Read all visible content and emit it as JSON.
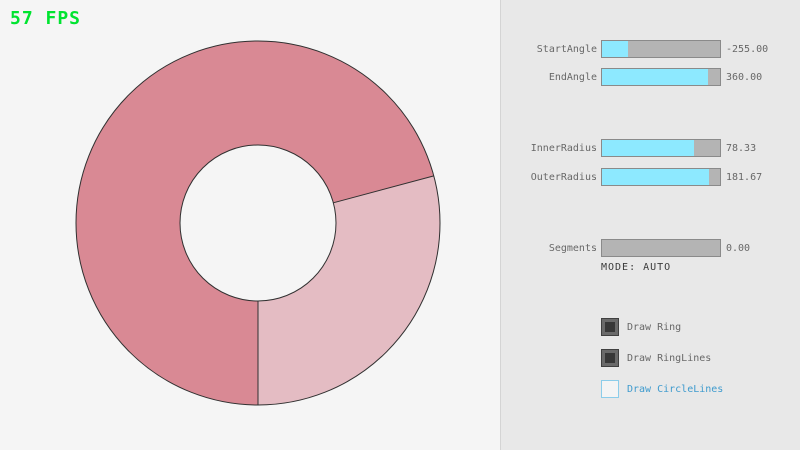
{
  "fps": "57 FPS",
  "colors": {
    "fps_text": "#00E430",
    "background": "#F5F5F5",
    "panel_background": "#E8E8E8",
    "slider_fill": "#8DE9FF",
    "slider_track": "#B4B4B4",
    "label_text": "#686868",
    "focused_blue": "#3F9BCE",
    "ring_overlap": "#D98994",
    "ring_single": "#E4BCC3",
    "ring_line": "#303030"
  },
  "ring": {
    "color_overlap": "#d98994",
    "color_single": "#e4bcc3",
    "line_color": "#303030"
  },
  "controls": {
    "sliders": [
      {
        "label": "StartAngle",
        "value": "-255.00",
        "fill_pct": 21.7
      },
      {
        "label": "EndAngle",
        "value": "360.00",
        "fill_pct": 90
      },
      {
        "label": "InnerRadius",
        "value": "78.33",
        "fill_pct": 78.3
      },
      {
        "label": "OuterRadius",
        "value": "181.67",
        "fill_pct": 90.8
      },
      {
        "label": "Segments",
        "value": "0.00",
        "fill_pct": 0
      }
    ],
    "mode_text": "MODE: AUTO",
    "checkboxes": [
      {
        "label": "Draw Ring",
        "checked": true
      },
      {
        "label": "Draw RingLines",
        "checked": true
      },
      {
        "label": "Draw CircleLines",
        "checked": false
      }
    ]
  }
}
